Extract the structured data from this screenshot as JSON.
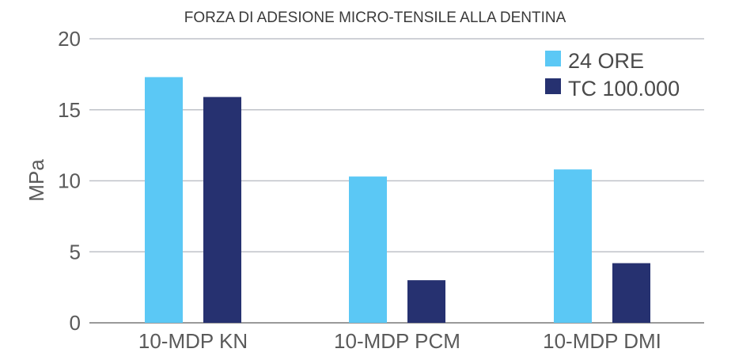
{
  "chart_data": {
    "type": "bar",
    "title": "FORZA DI ADESIONE MICRO-TENSILE ALLA DENTINA",
    "xlabel": "",
    "ylabel": "MPa",
    "categories": [
      "10-MDP KN",
      "10-MDP PCM",
      "10-MDP DMI"
    ],
    "series": [
      {
        "name": "24 ORE",
        "values": [
          17.3,
          10.3,
          10.8
        ],
        "color": "#5bc8f5"
      },
      {
        "name": "TC 100.000",
        "values": [
          15.9,
          3.0,
          4.2
        ],
        "color": "#263170"
      }
    ],
    "ylim": [
      0,
      20
    ],
    "yticks": [
      "0",
      "5",
      "10",
      "15",
      "20"
    ],
    "grid": true,
    "legend_position": "top-right",
    "gridline_color": "#bfc2c8",
    "axis_color": "#9a9a9a"
  }
}
